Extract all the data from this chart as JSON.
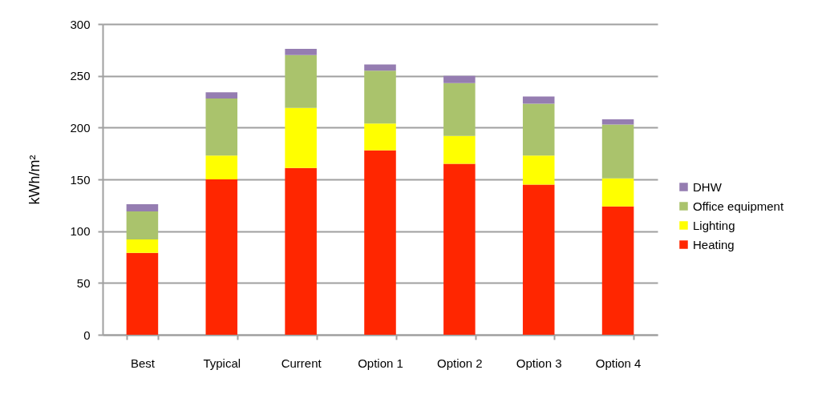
{
  "chart_data": {
    "type": "bar",
    "stacked": true,
    "ylabel": "kWh/m²",
    "categories": [
      "Best",
      "Typical",
      "Current",
      "Option 1",
      "Option 2",
      "Option 3",
      "Option 4"
    ],
    "series": [
      {
        "name": "Heating",
        "color": "#ff2600",
        "values": [
          79,
          150,
          161,
          178,
          165,
          145,
          124
        ]
      },
      {
        "name": "Lighting",
        "color": "#ffff00",
        "values": [
          13,
          23,
          58,
          26,
          27,
          28,
          27
        ]
      },
      {
        "name": "Office equipment",
        "color": "#aac36c",
        "values": [
          27,
          55,
          51,
          51,
          51,
          50,
          52
        ]
      },
      {
        "name": "DHW",
        "color": "#957db1",
        "values": [
          7,
          6,
          6,
          6,
          7,
          7,
          5
        ]
      }
    ],
    "ylim": [
      0,
      300
    ],
    "yticks": [
      0,
      50,
      100,
      150,
      200,
      250,
      300
    ],
    "grid": "y",
    "legend": "right"
  }
}
